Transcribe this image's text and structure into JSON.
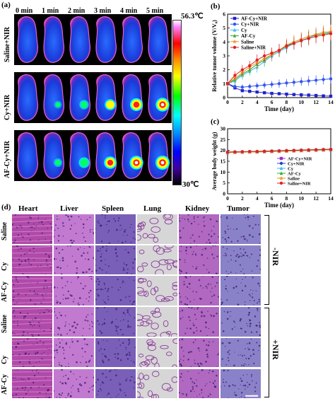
{
  "panel_a": {
    "letter": "(a)",
    "time_labels": [
      "0 min",
      "1 min",
      "2 min",
      "3 min",
      "4 min",
      "5 min"
    ],
    "row_labels": [
      "Saline+NIR",
      "Cy+NIR",
      "AF-Cy+NIR"
    ],
    "spot_intensity": [
      [
        0,
        0,
        0,
        0,
        0,
        0
      ],
      [
        0,
        0.25,
        0.45,
        0.65,
        0.85,
        0.95
      ],
      [
        0,
        0.35,
        0.6,
        0.8,
        0.95,
        1.0
      ]
    ],
    "colorbar_max": "56.3℃",
    "colorbar_min": "30℃"
  },
  "panel_d": {
    "letter": "(d)",
    "organs": [
      "Heart",
      "Liver",
      "Spleen",
      "Lung",
      "Kidney",
      "Tumor"
    ],
    "row_labels": [
      "Saline",
      "Cy",
      "AF-Cy",
      "Saline",
      "Cy",
      "AF-Cy"
    ],
    "group_labels": [
      "-NIR",
      "+NIR"
    ],
    "tissue_colors": [
      "#b04aa8",
      "#c27ad0",
      "#7a5fb8",
      "#d6d6d6",
      "#b068c0",
      "#8a82c8"
    ]
  },
  "chart_data": [
    {
      "type": "line",
      "panel": "(b)",
      "xlabel": "Time (day)",
      "ylabel": "Relative tumor volume (V/V₀)",
      "xlim": [
        0,
        14
      ],
      "ylim": [
        0,
        6
      ],
      "xticks": [
        0,
        2,
        4,
        6,
        8,
        10,
        12,
        14
      ],
      "yticks": [
        0,
        1,
        2,
        3,
        4,
        5,
        6
      ],
      "legend_position": "top-left",
      "x": [
        0,
        1,
        2,
        3,
        4,
        5,
        6,
        7,
        8,
        9,
        10,
        11,
        12,
        13,
        14
      ],
      "series": [
        {
          "name": "AF-Cy+NIR",
          "color": "#2222cc",
          "marker": "square",
          "values": [
            1.0,
            0.7,
            0.5,
            0.45,
            0.4,
            0.35,
            0.3,
            0.28,
            0.25,
            0.22,
            0.2,
            0.18,
            0.15,
            0.12,
            0.1
          ],
          "errors": [
            0.15,
            0.12,
            0.1,
            0.1,
            0.1,
            0.1,
            0.1,
            0.08,
            0.08,
            0.08,
            0.08,
            0.08,
            0.08,
            0.08,
            0.08
          ]
        },
        {
          "name": "Cy+NIR",
          "color": "#3355ee",
          "marker": "circle",
          "values": [
            1.0,
            0.8,
            0.75,
            0.8,
            0.85,
            0.9,
            0.95,
            1.0,
            1.05,
            1.1,
            1.15,
            1.2,
            1.25,
            1.3,
            1.35
          ],
          "errors": [
            0.2,
            0.2,
            0.2,
            0.2,
            0.25,
            0.25,
            0.25,
            0.3,
            0.3,
            0.3,
            0.3,
            0.35,
            0.35,
            0.35,
            0.35
          ]
        },
        {
          "name": "Cy",
          "color": "#33bbee",
          "marker": "triangle",
          "values": [
            1.0,
            1.2,
            1.6,
            1.9,
            2.2,
            2.6,
            3.0,
            3.3,
            3.6,
            3.9,
            4.1,
            4.3,
            4.5,
            4.6,
            4.7
          ],
          "errors": [
            0.2,
            0.3,
            0.3,
            0.3,
            0.4,
            0.4,
            0.4,
            0.4,
            0.45,
            0.45,
            0.45,
            0.5,
            0.5,
            0.5,
            0.5
          ]
        },
        {
          "name": "AF-Cy",
          "color": "#33aa33",
          "marker": "triangle",
          "values": [
            1.0,
            1.3,
            1.7,
            2.0,
            2.4,
            2.7,
            3.1,
            3.4,
            3.7,
            4.0,
            4.2,
            4.4,
            4.5,
            4.6,
            4.65
          ],
          "errors": [
            0.2,
            0.3,
            0.3,
            0.35,
            0.4,
            0.4,
            0.4,
            0.45,
            0.45,
            0.45,
            0.5,
            0.5,
            0.5,
            0.5,
            0.5
          ]
        },
        {
          "name": "Saline",
          "color": "#ee9922",
          "marker": "star",
          "values": [
            1.0,
            1.4,
            1.8,
            2.2,
            2.5,
            2.8,
            3.1,
            3.4,
            3.8,
            4.0,
            4.2,
            4.4,
            4.55,
            4.7,
            4.75
          ],
          "errors": [
            0.2,
            0.3,
            0.35,
            0.35,
            0.4,
            0.4,
            0.45,
            0.45,
            0.45,
            0.5,
            0.5,
            0.5,
            0.5,
            0.5,
            0.5
          ]
        },
        {
          "name": "Saline+NIR",
          "color": "#dd2222",
          "marker": "circle",
          "values": [
            1.0,
            1.6,
            2.0,
            2.3,
            2.7,
            3.0,
            3.2,
            3.4,
            3.7,
            3.9,
            4.1,
            4.25,
            4.4,
            4.5,
            4.6
          ],
          "errors": [
            0.2,
            0.3,
            0.35,
            0.35,
            0.4,
            0.4,
            0.4,
            0.45,
            0.45,
            0.45,
            0.5,
            0.5,
            0.5,
            0.5,
            0.5
          ]
        }
      ]
    },
    {
      "type": "line",
      "panel": "(c)",
      "xlabel": "Time (day)",
      "ylabel": "Average body weight (g)",
      "xlim": [
        0,
        14
      ],
      "ylim": [
        0,
        30
      ],
      "xticks": [
        0,
        2,
        4,
        6,
        8,
        10,
        12,
        14
      ],
      "yticks": [
        0,
        5,
        10,
        15,
        20,
        25,
        30
      ],
      "legend_position": "bottom-right",
      "x": [
        0,
        1,
        2,
        3,
        4,
        5,
        6,
        7,
        8,
        9,
        10,
        11,
        12,
        13,
        14
      ],
      "series": [
        {
          "name": "AF-Cy+NIR",
          "color": "#9933cc",
          "marker": "square",
          "values": [
            19,
            19.1,
            19.2,
            19.3,
            19.3,
            19.4,
            19.5,
            19.6,
            19.7,
            19.8,
            19.9,
            20,
            20.1,
            20.2,
            20.3
          ]
        },
        {
          "name": "Cy+NIR",
          "color": "#2244cc",
          "marker": "circle",
          "values": [
            19.2,
            19.3,
            19.3,
            19.4,
            19.5,
            19.6,
            19.7,
            19.8,
            19.9,
            20.0,
            20.1,
            20.2,
            20.3,
            20.4,
            20.5
          ]
        },
        {
          "name": "Cy",
          "color": "#33bbee",
          "marker": "triangle",
          "values": [
            19.1,
            19.2,
            19.3,
            19.3,
            19.4,
            19.5,
            19.6,
            19.7,
            19.8,
            19.9,
            20.0,
            20.1,
            20.2,
            20.3,
            20.4
          ]
        },
        {
          "name": "AF-Cy",
          "color": "#33aa33",
          "marker": "triangle",
          "values": [
            19.3,
            19.4,
            19.4,
            19.5,
            19.6,
            19.7,
            19.8,
            19.9,
            20.0,
            20.1,
            20.2,
            20.3,
            20.4,
            20.5,
            20.6
          ]
        },
        {
          "name": "Saline",
          "color": "#ee9922",
          "marker": "star",
          "values": [
            19.0,
            19.1,
            19.2,
            19.2,
            19.3,
            19.4,
            19.5,
            19.6,
            19.7,
            19.8,
            19.9,
            20.0,
            20.1,
            20.2,
            20.3
          ]
        },
        {
          "name": "Saline+NIR",
          "color": "#dd2222",
          "marker": "circle",
          "values": [
            19.2,
            19.3,
            19.4,
            19.5,
            19.5,
            19.6,
            19.7,
            19.8,
            19.9,
            20.0,
            20.1,
            20.2,
            20.3,
            20.4,
            20.5
          ]
        }
      ]
    }
  ]
}
